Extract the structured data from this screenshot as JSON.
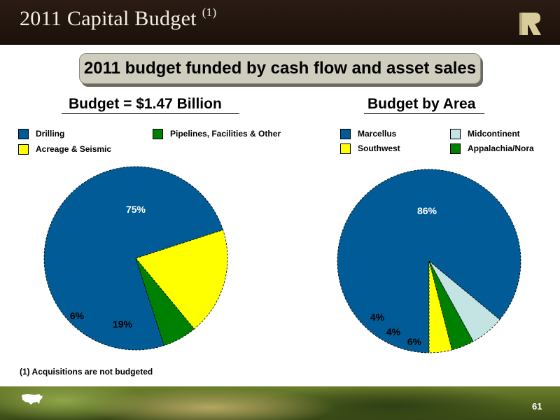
{
  "header": {
    "title": "2011 Capital Budget",
    "title_note": "(1)"
  },
  "banner": "2011 budget funded by cash flow and asset sales",
  "footnote": "(1)  Acquisitions are not budgeted",
  "page_number": "61",
  "chart_data": [
    {
      "type": "pie",
      "title": "Budget = $1.47 Billion",
      "legend": [
        {
          "label": "Drilling",
          "color": "#005b96"
        },
        {
          "label": "Pipelines, Facilities & Other",
          "color": "#008000"
        },
        {
          "label": "Acreage & Seismic",
          "color": "#ffff00"
        }
      ],
      "slices": [
        {
          "label": "Drilling",
          "value": 75,
          "display": "75%",
          "color": "#005b96"
        },
        {
          "label": "Acreage & Seismic",
          "value": 19,
          "display": "19%",
          "color": "#ffff00"
        },
        {
          "label": "Pipelines, Facilities & Other",
          "value": 6,
          "display": "6%",
          "color": "#008000"
        }
      ]
    },
    {
      "type": "pie",
      "title": "Budget by Area",
      "legend": [
        {
          "label": "Marcellus",
          "color": "#005b96"
        },
        {
          "label": "Midcontinent",
          "color": "#c4e4e4"
        },
        {
          "label": "Southwest",
          "color": "#ffff00"
        },
        {
          "label": "Appalachia/Nora",
          "color": "#008000"
        }
      ],
      "slices": [
        {
          "label": "Marcellus",
          "value": 86,
          "display": "86%",
          "color": "#005b96"
        },
        {
          "label": "Midcontinent",
          "value": 6,
          "display": "6%",
          "color": "#c4e4e4"
        },
        {
          "label": "Appalachia/Nora",
          "value": 4,
          "display": "4%",
          "color": "#008000"
        },
        {
          "label": "Southwest",
          "value": 4,
          "display": "4%",
          "color": "#ffff00"
        }
      ]
    }
  ]
}
